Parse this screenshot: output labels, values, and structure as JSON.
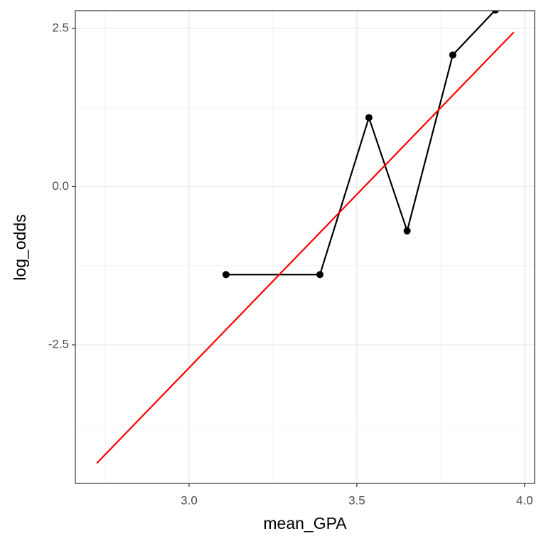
{
  "chart_data": {
    "type": "line",
    "x_label": "mean_GPA",
    "y_label": "log_odds",
    "xlim": [
      2.661,
      4.03
    ],
    "ylim": [
      -4.69,
      2.78
    ],
    "xticks": [
      {
        "value": 3.0,
        "label": "3.0"
      },
      {
        "value": 3.5,
        "label": "3.5"
      },
      {
        "value": 4.0,
        "label": "4.0"
      }
    ],
    "yticks": [
      {
        "value": -2.5,
        "label": "-2.5"
      },
      {
        "value": 0,
        "label": "0.0"
      },
      {
        "value": 2.5,
        "label": "2.5"
      }
    ],
    "grid": true,
    "minor_grid": true,
    "series": [
      {
        "color": "#000000",
        "markers": true,
        "x": [
          3.11,
          3.39,
          3.536,
          3.65,
          3.786,
          3.913
        ],
        "values": [
          -1.39,
          -1.39,
          1.09,
          -0.7,
          2.08,
          2.79
        ]
      },
      {
        "color": "#ff0000",
        "markers": false,
        "x": [
          2.725,
          3.968
        ],
        "values": [
          -4.37,
          2.44
        ]
      }
    ]
  }
}
